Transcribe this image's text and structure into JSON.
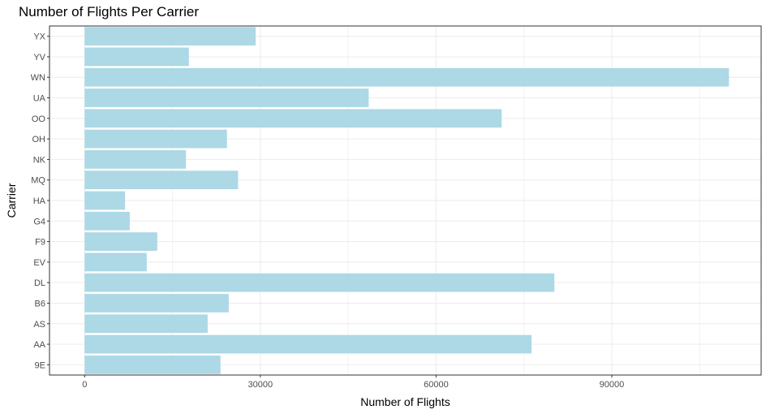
{
  "chart_data": {
    "type": "bar",
    "orientation": "horizontal",
    "title": "Number of Flights Per Carrier",
    "xlabel": "Number of Flights",
    "ylabel": "Carrier",
    "categories": [
      "9E",
      "AA",
      "AS",
      "B6",
      "DL",
      "EV",
      "F9",
      "G4",
      "HA",
      "MQ",
      "NK",
      "OH",
      "OO",
      "UA",
      "WN",
      "YV",
      "YX"
    ],
    "values": [
      23200,
      76300,
      21000,
      24600,
      80200,
      10600,
      12400,
      7700,
      6900,
      26200,
      17300,
      24300,
      71200,
      48500,
      110000,
      17800,
      29200
    ],
    "xlim": [
      -6000,
      115500
    ],
    "xticks": [
      0,
      30000,
      60000,
      90000
    ],
    "xtick_labels": [
      "0",
      "30000",
      "60000",
      "90000"
    ],
    "grid": true,
    "bar_color": "#add8e6"
  }
}
